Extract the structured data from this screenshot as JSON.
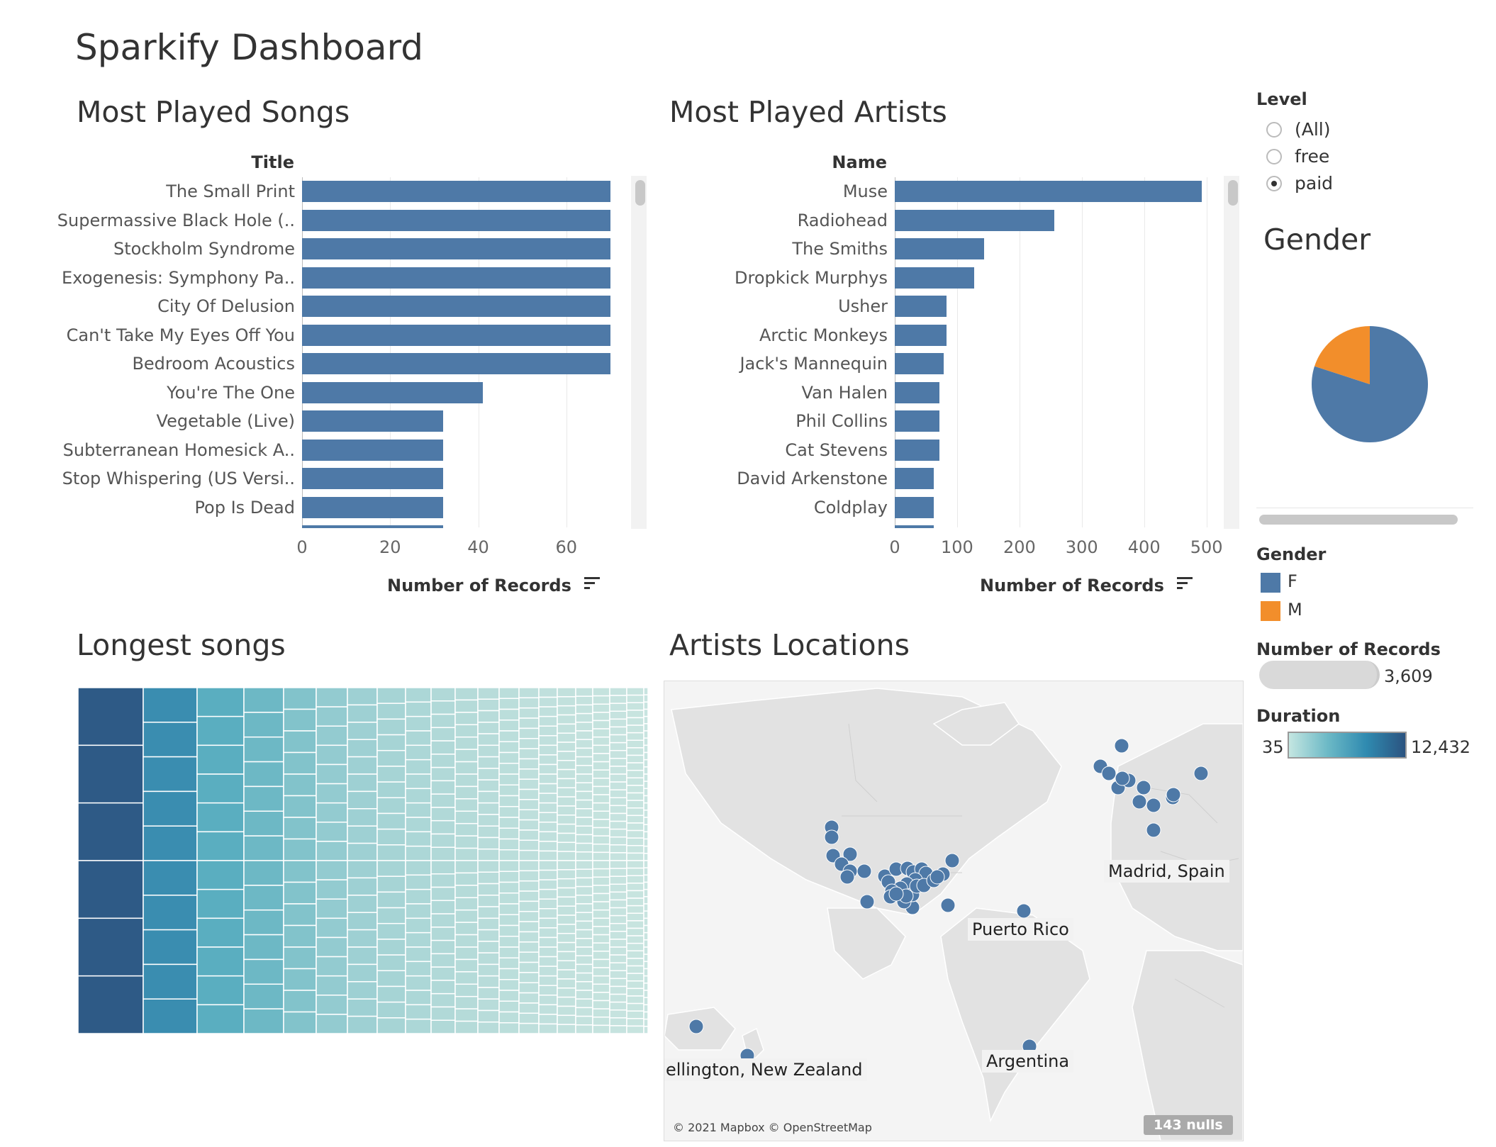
{
  "dashboard_title": "Sparkify Dashboard",
  "songs": {
    "title": "Most Played Songs",
    "col_header": "Title",
    "axis_title": "Number of Records",
    "sort_icon": "sort-descending-icon"
  },
  "artists": {
    "title": "Most Played Artists",
    "col_header": "Name",
    "axis_title": "Number of Records",
    "sort_icon": "sort-descending-icon"
  },
  "treemap": {
    "title": "Longest songs"
  },
  "map": {
    "title": "Artists Locations",
    "labels": [
      "Madrid, Spain",
      "Puerto Rico",
      "ellington, New Zealand",
      "Argentina"
    ],
    "attribution": "© 2021 Mapbox © OpenStreetMap",
    "nulls": "143 nulls"
  },
  "level_filter": {
    "title": "Level",
    "options": [
      "(All)",
      "free",
      "paid"
    ],
    "selected": "paid"
  },
  "gender_pie": {
    "title": "Gender"
  },
  "gender_legend": {
    "title": "Gender",
    "items": [
      {
        "label": "F",
        "color": "#4e79a7"
      },
      {
        "label": "M",
        "color": "#f28e2b"
      }
    ]
  },
  "size_legend": {
    "title": "Number of Records",
    "value": "3,609"
  },
  "duration_legend": {
    "title": "Duration",
    "min": "35",
    "max": "12,432"
  },
  "chart_data": [
    {
      "type": "bar",
      "orientation": "horizontal",
      "title": "Most Played Songs",
      "ylabel": "Title",
      "xlabel": "Number of Records",
      "xlim": [
        0,
        75
      ],
      "x_ticks": [
        "0",
        "20",
        "40",
        "60"
      ],
      "categories": [
        "The Small Print",
        "Supermassive Black Hole (..",
        "Stockholm Syndrome",
        "Exogenesis: Symphony Pa..",
        "City Of Delusion",
        "Can't Take My Eyes Off You",
        "Bedroom Acoustics",
        "You're The One",
        "Vegetable (Live)",
        "Subterranean Homesick A..",
        "Stop Whispering (US Versi..",
        "Pop Is Dead"
      ],
      "values": [
        70,
        70,
        70,
        70,
        70,
        70,
        70,
        41,
        32,
        32,
        32,
        32
      ]
    },
    {
      "type": "bar",
      "orientation": "horizontal",
      "title": "Most Played Artists",
      "ylabel": "Name",
      "xlabel": "Number of Records",
      "xlim": [
        0,
        530
      ],
      "x_ticks": [
        "0",
        "100",
        "200",
        "300",
        "400",
        "500"
      ],
      "categories": [
        "Muse",
        "Radiohead",
        "The Smiths",
        "Dropkick Murphys",
        "Usher",
        "Arctic Monkeys",
        "Jack's Mannequin",
        "Van Halen",
        "Phil Collins",
        "Cat Stevens",
        "David Arkenstone",
        "Coldplay"
      ],
      "values": [
        492,
        256,
        143,
        127,
        83,
        83,
        79,
        72,
        72,
        72,
        62,
        62
      ]
    },
    {
      "type": "pie",
      "title": "Gender",
      "categories": [
        "F",
        "M"
      ],
      "values": [
        80,
        20
      ]
    }
  ]
}
